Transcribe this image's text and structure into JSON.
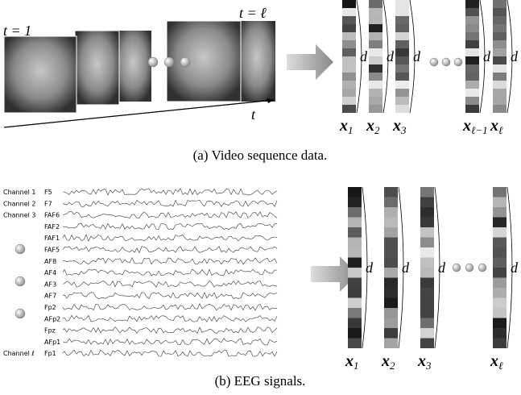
{
  "video": {
    "frame_labels": [
      "t = 1",
      "t = ℓ"
    ],
    "time_label": "t",
    "dim_label": "d",
    "vectors": [
      {
        "symbol": "x",
        "subscript": "1"
      },
      {
        "symbol": "x",
        "subscript": "2"
      },
      {
        "symbol": "x",
        "subscript": "3"
      },
      {
        "symbol": "x",
        "subscript": "ℓ−1"
      },
      {
        "symbol": "x",
        "subscript": "ℓ"
      }
    ],
    "caption": "(a) Video sequence data."
  },
  "eeg": {
    "channels": [
      "Channel 1",
      "Channel 2",
      "Channel 3",
      "Channel ℓ"
    ],
    "electrodes": [
      "F5",
      "F7",
      "FAF6",
      "FAF2",
      "FAF1",
      "FAF5",
      "AF8",
      "AF4",
      "AF3",
      "AF7",
      "Fp2",
      "AFp2",
      "Fpz",
      "AFp1",
      "Fp1"
    ],
    "dim_label": "d",
    "vectors": [
      {
        "symbol": "x",
        "subscript": "1"
      },
      {
        "symbol": "x",
        "subscript": "2"
      },
      {
        "symbol": "x",
        "subscript": "3"
      },
      {
        "symbol": "x",
        "subscript": "ℓ"
      }
    ],
    "caption": "(b) EEG signals."
  }
}
